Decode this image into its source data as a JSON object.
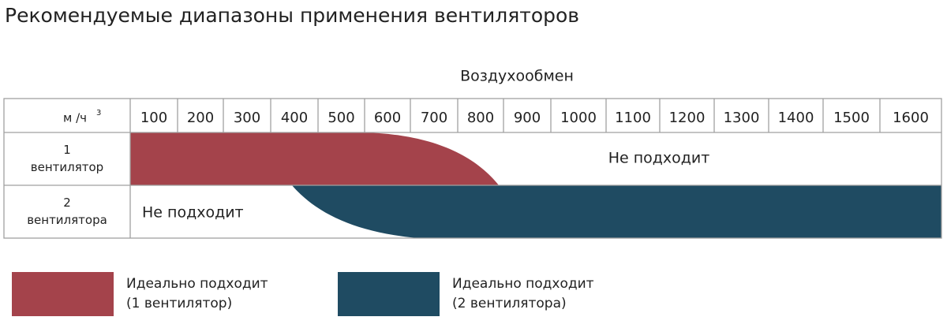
{
  "title": "Рекомендуемые диапазоны применения вентиляторов",
  "axis_label": "Воздухообмен",
  "header": {
    "unit": "м /ч",
    "unit_sup": "3",
    "columns": [
      "100",
      "200",
      "300",
      "400",
      "500",
      "600",
      "700",
      "800",
      "900",
      "1000",
      "1100",
      "1200",
      "1300",
      "1400",
      "1500",
      "1600"
    ]
  },
  "rows": [
    {
      "label_lines": [
        "1",
        "вентилятор"
      ],
      "note": "Не подходит"
    },
    {
      "label_lines": [
        "2",
        "вентилятора"
      ],
      "note": "Не подходит"
    }
  ],
  "legend": [
    {
      "lines": [
        "Идеально подходит",
        "(1 вентилятор)"
      ],
      "color": "#a4434b"
    },
    {
      "lines": [
        "Идеально подходит",
        "(2  вентилятора)"
      ],
      "color": "#1f4b62"
    }
  ]
}
